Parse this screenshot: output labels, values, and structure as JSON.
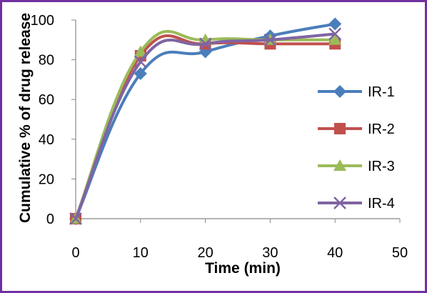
{
  "chart_data": {
    "type": "line",
    "title": "",
    "xlabel": "Time (min)",
    "ylabel": "Cumulative % of drug release",
    "xlim": [
      0,
      50
    ],
    "ylim": [
      0,
      100
    ],
    "xticks": [
      0,
      10,
      20,
      30,
      40,
      50
    ],
    "yticks": [
      0,
      20,
      40,
      60,
      80,
      100
    ],
    "grid": false,
    "smooth": true,
    "legend_position": "right",
    "x": [
      0,
      10,
      20,
      30,
      40
    ],
    "series": [
      {
        "name": "IR-1",
        "color": "#4a7ebb",
        "marker": "diamond",
        "values": [
          0,
          73,
          84,
          92,
          98
        ]
      },
      {
        "name": "IR-2",
        "color": "#c0504d",
        "marker": "square",
        "values": [
          0,
          82,
          88,
          88,
          88
        ]
      },
      {
        "name": "IR-3",
        "color": "#9bbb59",
        "marker": "triangle",
        "values": [
          0,
          84,
          90,
          90,
          90
        ]
      },
      {
        "name": "IR-4",
        "color": "#8064a2",
        "marker": "x",
        "values": [
          0,
          79,
          88,
          90,
          93
        ]
      }
    ]
  }
}
